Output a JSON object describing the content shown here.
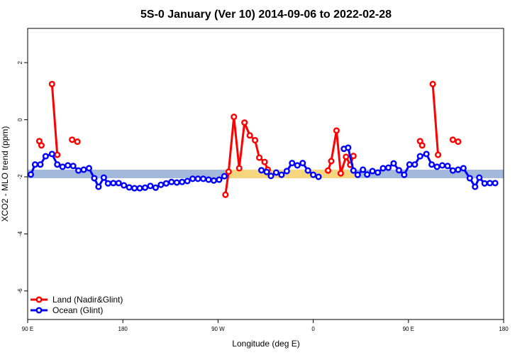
{
  "chart_data": {
    "type": "line",
    "title": "5S-0 January (Ver 10)   2014-09-06 to 2022-02-28",
    "xlabel": "Longitude (deg E)",
    "ylabel": "XCO2 - MLO trend (ppm)",
    "xlim": [
      90,
      540
    ],
    "ylim": [
      -7,
      3.2
    ],
    "x_ticks": [
      {
        "value": 90,
        "label": "90 E"
      },
      {
        "value": 180,
        "label": "180"
      },
      {
        "value": 270,
        "label": "90 W"
      },
      {
        "value": 360,
        "label": "0"
      },
      {
        "value": 450,
        "label": "90 E"
      },
      {
        "value": 540,
        "label": "180"
      }
    ],
    "y_ticks": [
      {
        "value": 2,
        "label": "2"
      },
      {
        "value": 0,
        "label": "0"
      },
      {
        "value": -2,
        "label": "-2"
      },
      {
        "value": -4,
        "label": "-4"
      },
      {
        "value": -6,
        "label": "-6"
      }
    ],
    "grid": false,
    "legend_position": "bottom-left",
    "band": {
      "y_min": -2.05,
      "y_max": -1.75,
      "colors": {
        "ocean": "#a3b9db",
        "land": "#f5d67e"
      }
    },
    "series": [
      {
        "name": "Land (Nadir&Glint)",
        "color": "#ff0000",
        "segments": [
          [
            [
              101,
              -0.75
            ],
            [
              103,
              -0.9
            ]
          ],
          [
            [
              113,
              1.25
            ],
            [
              118,
              -1.23
            ]
          ],
          [
            [
              132,
              -0.7
            ],
            [
              137,
              -0.77
            ]
          ],
          [
            [
              277,
              -2.63
            ],
            [
              280,
              -1.82
            ],
            [
              285,
              0.1
            ],
            [
              290,
              -1.7
            ],
            [
              295,
              -0.1
            ],
            [
              300,
              -0.55
            ],
            [
              305,
              -0.72
            ],
            [
              309,
              -1.33
            ],
            [
              314,
              -1.48
            ],
            [
              317,
              -1.75
            ]
          ],
          [
            [
              374,
              -1.78
            ],
            [
              377,
              -1.45
            ],
            [
              382,
              -0.38
            ],
            [
              386,
              -1.88
            ],
            [
              391,
              -1.3
            ],
            [
              395,
              -1.58
            ],
            [
              398,
              -1.27
            ]
          ],
          [
            [
              461,
              -0.75
            ],
            [
              463,
              -0.9
            ]
          ],
          [
            [
              473,
              1.25
            ],
            [
              478,
              -1.23
            ]
          ],
          [
            [
              492,
              -0.7
            ],
            [
              497,
              -0.77
            ]
          ]
        ]
      },
      {
        "name": "Ocean (Glint)",
        "color": "#0000ff",
        "segments": [
          [
            [
              93,
              -1.92
            ],
            [
              97,
              -1.57
            ],
            [
              102,
              -1.57
            ],
            [
              107,
              -1.28
            ],
            [
              113,
              -1.2
            ],
            [
              118,
              -1.57
            ],
            [
              123,
              -1.65
            ],
            [
              128,
              -1.6
            ],
            [
              133,
              -1.62
            ],
            [
              138,
              -1.78
            ],
            [
              143,
              -1.75
            ],
            [
              148,
              -1.7
            ],
            [
              153,
              -2.05
            ],
            [
              157,
              -2.35
            ],
            [
              162,
              -2.03
            ],
            [
              166,
              -2.23
            ],
            [
              171,
              -2.22
            ],
            [
              176,
              -2.22
            ],
            [
              181,
              -2.3
            ],
            [
              186,
              -2.37
            ],
            [
              191,
              -2.4
            ],
            [
              196,
              -2.4
            ],
            [
              201,
              -2.38
            ],
            [
              206,
              -2.32
            ],
            [
              211,
              -2.38
            ],
            [
              216,
              -2.28
            ],
            [
              221,
              -2.23
            ],
            [
              226,
              -2.18
            ],
            [
              231,
              -2.2
            ],
            [
              236,
              -2.18
            ],
            [
              241,
              -2.15
            ],
            [
              246,
              -2.07
            ],
            [
              251,
              -2.07
            ],
            [
              256,
              -2.07
            ],
            [
              261,
              -2.1
            ],
            [
              266,
              -2.13
            ],
            [
              271,
              -2.1
            ],
            [
              276,
              -1.98
            ]
          ],
          [
            [
              311,
              -1.77
            ],
            [
              316,
              -1.83
            ],
            [
              320,
              -1.97
            ],
            [
              325,
              -1.85
            ],
            [
              330,
              -1.93
            ],
            [
              335,
              -1.8
            ],
            [
              340,
              -1.52
            ],
            [
              345,
              -1.6
            ],
            [
              350,
              -1.52
            ],
            [
              355,
              -1.78
            ],
            [
              360,
              -1.93
            ],
            [
              365,
              -2.0
            ]
          ],
          [
            [
              389,
              -1.02
            ],
            [
              393,
              -0.98
            ],
            [
              398,
              -1.78
            ],
            [
              402,
              -1.93
            ],
            [
              407,
              -1.75
            ],
            [
              411,
              -1.92
            ],
            [
              416,
              -1.8
            ],
            [
              421,
              -1.85
            ],
            [
              426,
              -1.7
            ],
            [
              431,
              -1.68
            ],
            [
              436,
              -1.53
            ],
            [
              441,
              -1.77
            ],
            [
              446,
              -1.93
            ],
            [
              451,
              -1.57
            ],
            [
              456,
              -1.57
            ],
            [
              461,
              -1.28
            ],
            [
              467,
              -1.2
            ],
            [
              472,
              -1.57
            ],
            [
              477,
              -1.65
            ],
            [
              482,
              -1.6
            ],
            [
              487,
              -1.62
            ],
            [
              492,
              -1.78
            ],
            [
              497,
              -1.75
            ],
            [
              502,
              -1.7
            ],
            [
              508,
              -2.05
            ],
            [
              513,
              -2.35
            ],
            [
              517,
              -2.03
            ],
            [
              522,
              -2.23
            ],
            [
              527,
              -2.22
            ],
            [
              532,
              -2.22
            ]
          ]
        ]
      }
    ]
  }
}
